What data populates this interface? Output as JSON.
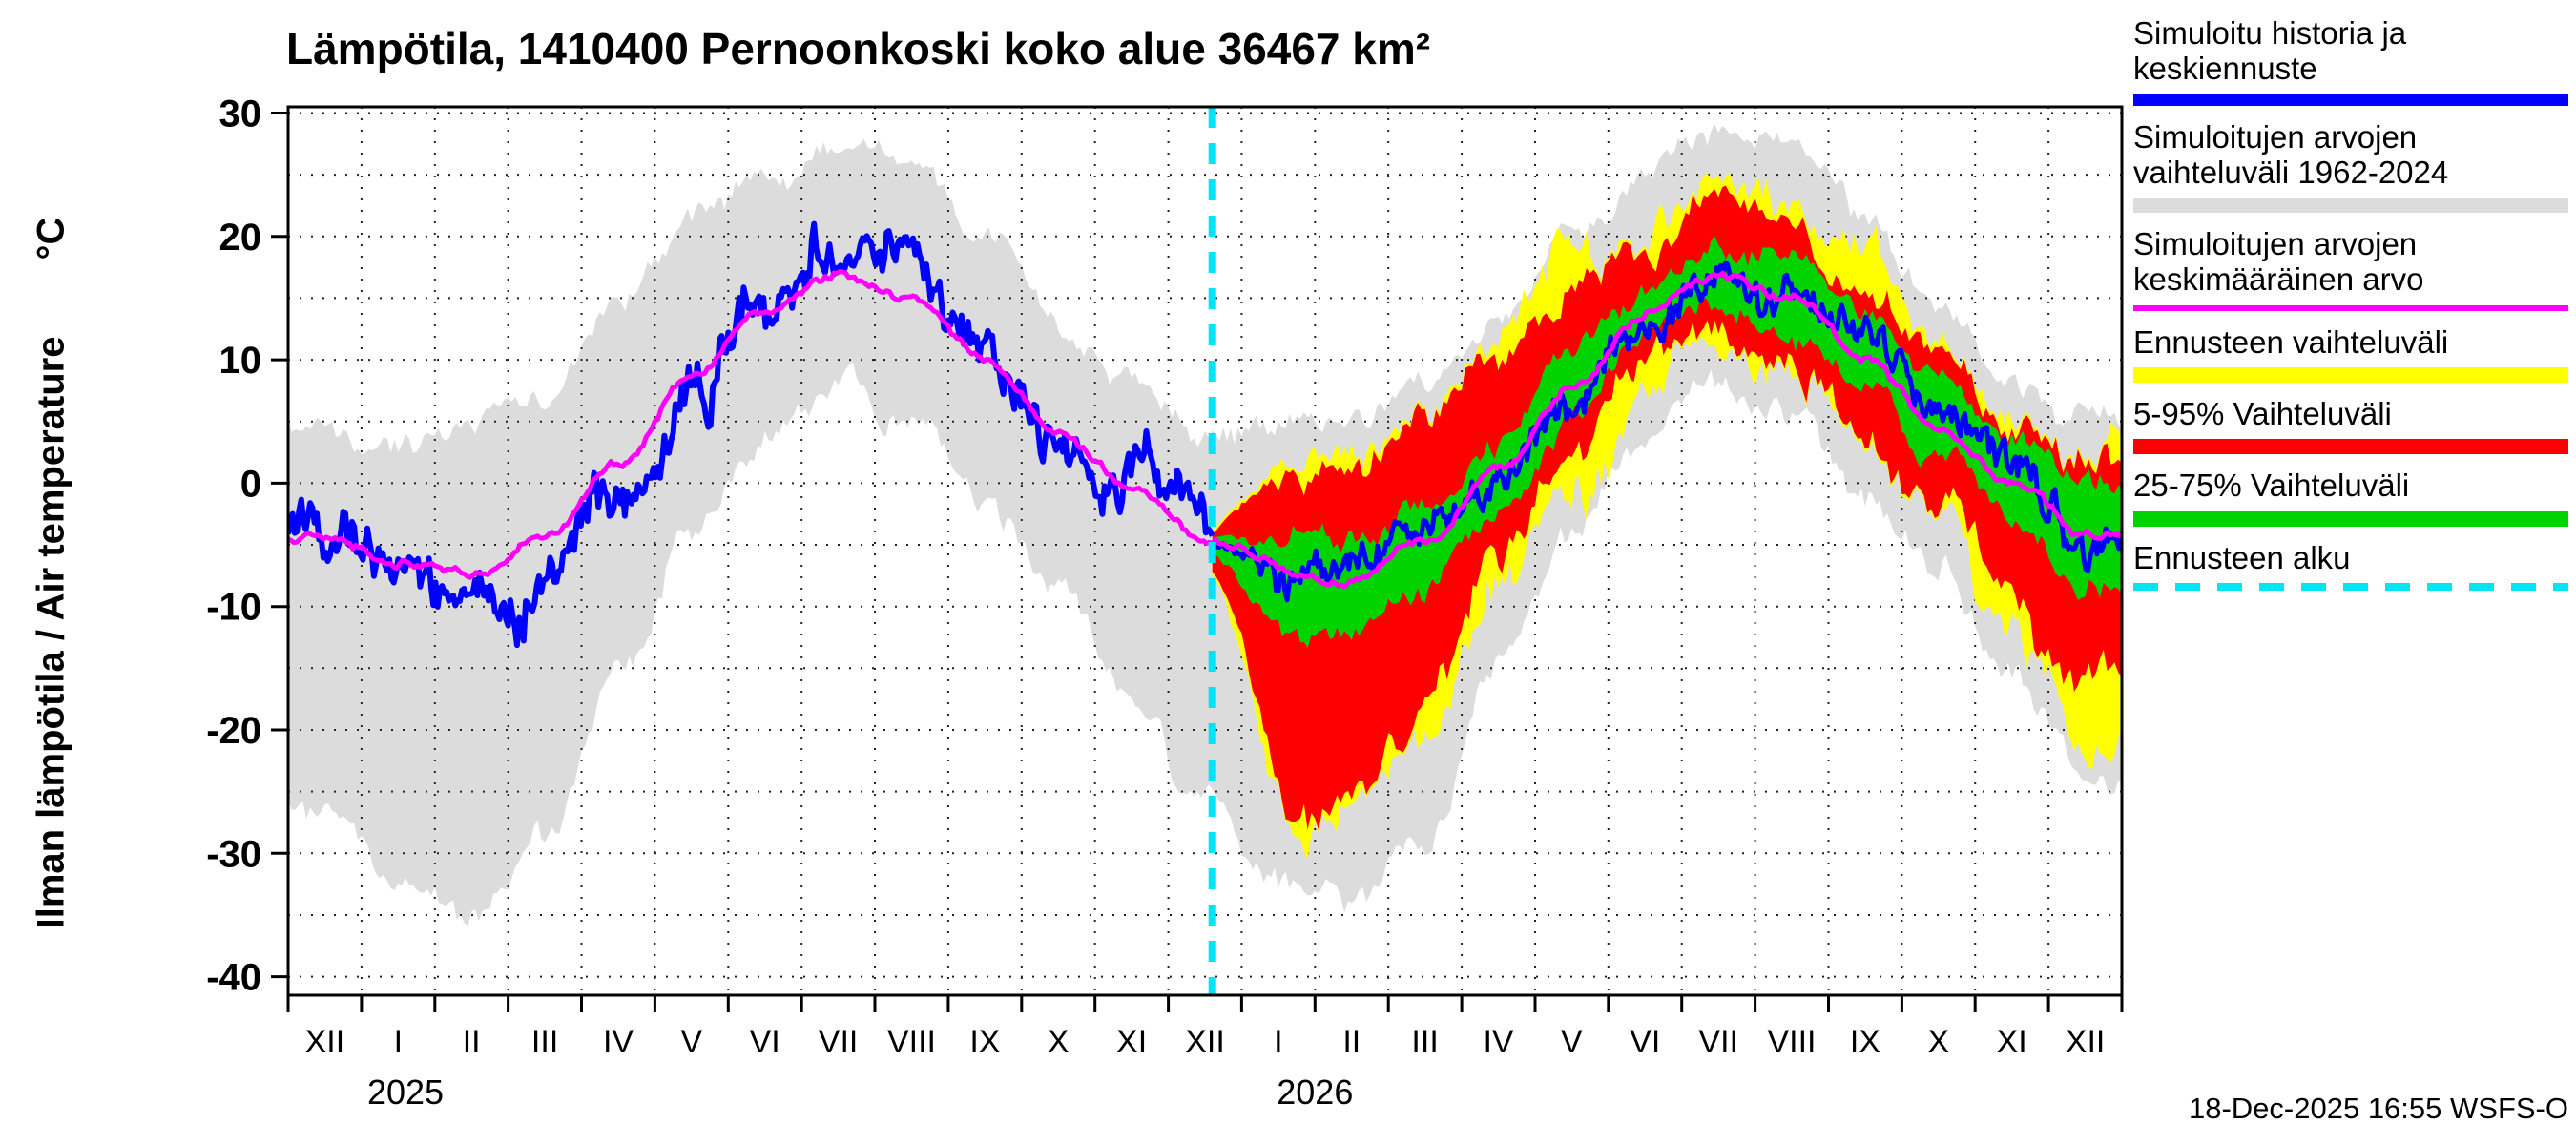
{
  "title": "Lämpötila, 1410400 Pernoonkoski koko alue 36467 km²",
  "ylabel": {
    "text": "Ilman lämpötila / Air temperature",
    "unit": "°C"
  },
  "footer": "18-Dec-2025 16:55 WSFS-O",
  "legend": [
    {
      "id": "sim-history",
      "label": "Simuloitu historia ja keskiennuste",
      "color": "#0000ff",
      "sample": "line",
      "thickness": 12
    },
    {
      "id": "hist-range",
      "label": "Simuloitujen arvojen vaihteluväli 1962-2024",
      "color": "#dcdcdc",
      "sample": "band",
      "thickness": 16
    },
    {
      "id": "sim-mean",
      "label": "Simuloitujen arvojen keskimääräinen arvo",
      "color": "#ff00ff",
      "sample": "line",
      "thickness": 6
    },
    {
      "id": "forecast-range",
      "label": "Ennusteen vaihteluväli",
      "color": "#ffff00",
      "sample": "band",
      "thickness": 16
    },
    {
      "id": "range-5-95",
      "label": "5-95% Vaihteluväli",
      "color": "#ff0000",
      "sample": "band",
      "thickness": 16
    },
    {
      "id": "range-25-75",
      "label": "25-75% Vaihteluväli",
      "color": "#00d300",
      "sample": "band",
      "thickness": 16
    },
    {
      "id": "forecast-start",
      "label": "Ennusteen alku",
      "color": "#00e5f5",
      "sample": "dashed",
      "thickness": 8
    }
  ],
  "chart_data": {
    "type": "line",
    "title": "Lämpötila, 1410400 Pernoonkoski koko alue 36467 km²",
    "ylabel": "Ilman lämpötila / Air temperature (°C)",
    "ylim": [
      -41.5,
      30.5
    ],
    "yticks": [
      30,
      20,
      10,
      0,
      -10,
      -20,
      -30,
      -40
    ],
    "grid_step_y": 5,
    "months_total": 25,
    "x_month_labels": [
      "XII",
      "I",
      "II",
      "III",
      "IV",
      "V",
      "VI",
      "VII",
      "VIII",
      "IX",
      "X",
      "XI",
      "XII",
      "I",
      "II",
      "III",
      "IV",
      "V",
      "VI",
      "VII",
      "VIII",
      "IX",
      "X",
      "XI",
      "XII"
    ],
    "year_labels": [
      {
        "label": "2025",
        "x_month": 1.6
      },
      {
        "label": "2026",
        "x_month": 14.0
      }
    ],
    "forecast_start_x": 12.6,
    "forecast_start_label": "Ennusteen alku",
    "forecast_start_color": "#00e5f5",
    "noise_seed": 20251218,
    "series": [
      {
        "id": "hist_range",
        "name": "Simuloitujen arvojen vaihteluväli 1962-2024",
        "kind": "band",
        "color": "#dcdcdc",
        "range": "all",
        "upper": [
          5,
          5,
          5,
          8,
          14,
          21,
          25,
          27.5,
          26,
          20,
          13,
          8,
          5,
          5,
          5,
          8,
          14,
          21,
          25,
          27.5,
          26,
          20,
          13,
          8,
          5
        ],
        "lower": [
          -26,
          -33,
          -35,
          -30,
          -15,
          -4,
          3,
          8,
          5,
          -2,
          -8,
          -18,
          -26,
          -33,
          -35,
          -30,
          -15,
          -4,
          3,
          8,
          5,
          -2,
          -8,
          -18,
          -26
        ]
      },
      {
        "id": "forecast_range",
        "name": "Ennusteen vaihteluväli",
        "kind": "band",
        "color": "#ffff00",
        "range": "forecast",
        "upper": [
          3.5,
          3.5,
          3.5,
          5.5,
          10.5,
          16.5,
          20.5,
          23.5,
          22.5,
          16.5,
          11.5,
          6.5,
          3.5,
          3.5,
          3.5,
          5.5,
          10.5,
          16.5,
          20.5,
          23.5,
          22.5,
          16.5,
          11.5,
          6.5,
          3.5
        ],
        "lower": [
          -20.5,
          -29.5,
          -28.5,
          -20.5,
          -8.5,
          -0.5,
          5.5,
          8.5,
          7.5,
          1.5,
          -4.5,
          -12.5,
          -20.5,
          -29.5,
          -28.5,
          -20.5,
          -8.5,
          -0.5,
          5.5,
          8.5,
          7.5,
          1.5,
          -4.5,
          -12.5,
          -20.5
        ]
      },
      {
        "id": "range_5_95",
        "name": "5-95% Vaihteluväli",
        "kind": "band",
        "color": "#ff0000",
        "range": "forecast",
        "upper": [
          2,
          2,
          2,
          4,
          9,
          15,
          19,
          22,
          21,
          15,
          10,
          5,
          2,
          2,
          2,
          4,
          9,
          15,
          19,
          22,
          21,
          15,
          10,
          5,
          2
        ],
        "lower": [
          -18,
          -27,
          -26,
          -18,
          -6,
          2,
          8,
          11,
          10,
          4,
          -2,
          -10,
          -18,
          -27,
          -26,
          -18,
          -6,
          2,
          8,
          11,
          10,
          4,
          -2,
          -10,
          -18
        ]
      },
      {
        "id": "range_25_75",
        "name": "25-75% Vaihteluväli",
        "kind": "band",
        "color": "#00d300",
        "range": "forecast",
        "upper": [
          -1,
          -3,
          -3,
          -1,
          4,
          11,
          16,
          19,
          18,
          13,
          8,
          3,
          -1,
          -3,
          -3,
          -1,
          4,
          11,
          16,
          19,
          18,
          13,
          8,
          3,
          -1
        ],
        "lower": [
          -9,
          -13,
          -12,
          -9,
          -2,
          5,
          11,
          14,
          13,
          8,
          2,
          -3,
          -9,
          -13,
          -12,
          -9,
          -2,
          5,
          11,
          14,
          13,
          8,
          2,
          -3,
          -9
        ]
      },
      {
        "id": "sim_history",
        "name": "Simuloitu historia ja keskiennuste",
        "kind": "line",
        "color": "#0000ff",
        "range": "history",
        "values": [
          -4,
          -8,
          -9,
          -5,
          2,
          10,
          16,
          21,
          18,
          11,
          5,
          -1,
          -5,
          -7,
          -7.5,
          -5,
          1,
          8,
          13.5,
          16.5,
          15.5,
          10.5,
          5,
          0,
          -4.5
        ]
      },
      {
        "id": "forecast_median",
        "name": "Simuloitu historia ja keskiennuste",
        "kind": "line",
        "color": "#0000ff",
        "range": "forecast",
        "values": [
          -5,
          -7,
          -7.5,
          -5,
          1,
          8,
          13.5,
          16.5,
          15.5,
          10.5,
          5,
          0,
          -5,
          -7,
          -7.5,
          -5,
          1,
          8,
          13.5,
          16.5,
          15.5,
          10.5,
          5,
          0,
          -4.5
        ]
      },
      {
        "id": "sim_mean",
        "name": "Simuloitujen arvojen keskimääräinen arvo",
        "kind": "line",
        "color": "#ff00ff",
        "range": "all",
        "values": [
          -4.5,
          -6.5,
          -7.5,
          -4.5,
          1.5,
          8.5,
          14,
          17,
          15,
          10,
          4.5,
          0,
          -4.5,
          -6.5,
          -7.5,
          -4.5,
          1.5,
          8.5,
          14,
          17,
          15,
          10,
          4.5,
          0,
          -4.5
        ]
      }
    ]
  }
}
